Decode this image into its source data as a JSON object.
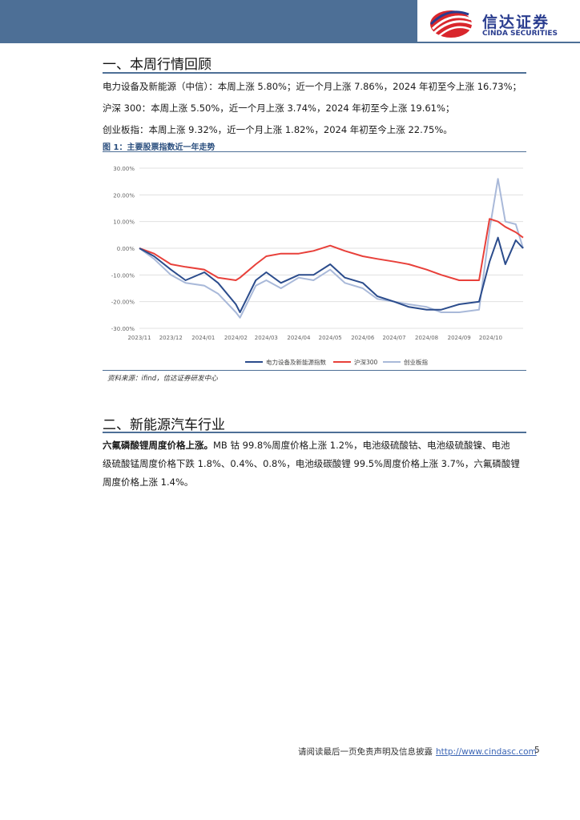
{
  "header": {
    "logo_cn": "信达证券",
    "logo_en": "CINDA SECURITIES",
    "brand_color": "#4d6f96",
    "logo_color": "#2a3d8f"
  },
  "section1": {
    "title": "一、本周行情回顾",
    "lines": [
      "电力设备及新能源（中信）：本周上涨 5.80%；近一个月上涨 7.86%，2024 年初至今上涨 16.73%；",
      "沪深 300：本周上涨 5.50%，近一个月上涨 3.74%，2024 年初至今上涨 19.61%；",
      "创业板指：本周上涨 9.32%，近一个月上涨 1.82%，2024 年初至今上涨 22.75%。"
    ],
    "figure_title": "图 1：主要股票指数近一年走势",
    "source": "资料来源：ifind，信达证券研发中心"
  },
  "chart_data": {
    "type": "line",
    "title": "",
    "xlabel": "",
    "ylabel": "",
    "ylim": [
      -30,
      30
    ],
    "yticks": [
      "30.00%",
      "20.00%",
      "10.00%",
      "0.00%",
      "-10.00%",
      "-20.00%",
      "-30.00%"
    ],
    "xticks": [
      "2023/11",
      "2023/12",
      "2024/01",
      "2024/02",
      "2024/03",
      "2024/04",
      "2024/05",
      "2024/06",
      "2024/07",
      "2024/08",
      "2024/09",
      "2024/10"
    ],
    "legend_position": "bottom",
    "grid": true,
    "x": [
      "2023/11/01",
      "2023/11/15",
      "2023/12/01",
      "2023/12/15",
      "2024/01/02",
      "2024/01/15",
      "2024/02/01",
      "2024/02/05",
      "2024/02/20",
      "2024/03/01",
      "2024/03/15",
      "2024/04/01",
      "2024/04/15",
      "2024/05/01",
      "2024/05/15",
      "2024/06/01",
      "2024/06/15",
      "2024/07/01",
      "2024/07/15",
      "2024/08/01",
      "2024/08/15",
      "2024/09/01",
      "2024/09/20",
      "2024/09/30",
      "2024/10/08",
      "2024/10/15",
      "2024/10/25",
      "2024/11/01"
    ],
    "series": [
      {
        "name": "电力设备及新能源指数",
        "color": "#2b4c8c",
        "values": [
          0,
          -3,
          -8,
          -12,
          -9,
          -13,
          -21,
          -24,
          -12,
          -9,
          -13,
          -10,
          -10,
          -6,
          -11,
          -13,
          -18,
          -20,
          -22,
          -23,
          -23,
          -21,
          -20,
          -5,
          4,
          -6,
          3,
          0
        ]
      },
      {
        "name": "沪深300",
        "color": "#e8403a",
        "values": [
          0,
          -2,
          -6,
          -7,
          -8,
          -11,
          -12,
          -11,
          -6,
          -3,
          -2,
          -2,
          -1,
          1,
          -1,
          -3,
          -4,
          -5,
          -6,
          -8,
          -10,
          -12,
          -12,
          11,
          10,
          8,
          6,
          4
        ]
      },
      {
        "name": "创业板指",
        "color": "#a9b9d9",
        "values": [
          0,
          -4,
          -10,
          -13,
          -14,
          -17,
          -24,
          -26,
          -14,
          -12,
          -15,
          -11,
          -12,
          -8,
          -13,
          -15,
          -19,
          -20,
          -21,
          -22,
          -24,
          -24,
          -23,
          7,
          26,
          10,
          9,
          0
        ]
      }
    ]
  },
  "section2": {
    "title": "二、新能源汽车行业",
    "lead": "六氟磷酸锂周度价格上涨。",
    "line1_rest": "MB 钴 99.8%周度价格上涨 1.2%，电池级硫酸钴、电池级硫酸镍、电池",
    "line2": "级硫酸锰周度价格下跌 1.8%、0.4%、0.8%，电池级碳酸锂 99.5%周度价格上涨 3.7%，六氟磷酸锂",
    "line3": "周度价格上涨 1.4%。"
  },
  "footer": {
    "disclaimer": "请阅读最后一页免责声明及信息披露",
    "link": "http://www.cindasc.com",
    "page": "5"
  }
}
